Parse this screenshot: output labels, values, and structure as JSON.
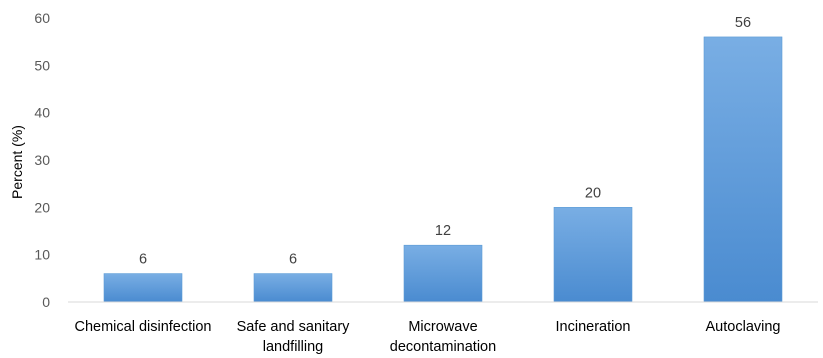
{
  "chart_data": {
    "type": "bar",
    "title": "",
    "xlabel": "",
    "ylabel": "Percent (%)",
    "ylim": [
      0,
      60
    ],
    "yticks": [
      0,
      10,
      20,
      30,
      40,
      50,
      60
    ],
    "grid": false,
    "legend": "none",
    "categories": [
      [
        "Chemical disinfection"
      ],
      [
        "Safe and sanitary",
        "landfilling"
      ],
      [
        "Microwave",
        "decontamination"
      ],
      [
        "Incineration"
      ],
      [
        "Autoclaving"
      ]
    ],
    "values": [
      6,
      6,
      12,
      20,
      56
    ],
    "data_labels": [
      "6",
      "6",
      "12",
      "20",
      "56"
    ],
    "colors": {
      "bar_top": "#79aee4",
      "bar_bottom": "#4a8bd0",
      "bar_edge": "#5b9bd5",
      "axis": "#d9d9d9",
      "tick_text": "#595959"
    }
  }
}
